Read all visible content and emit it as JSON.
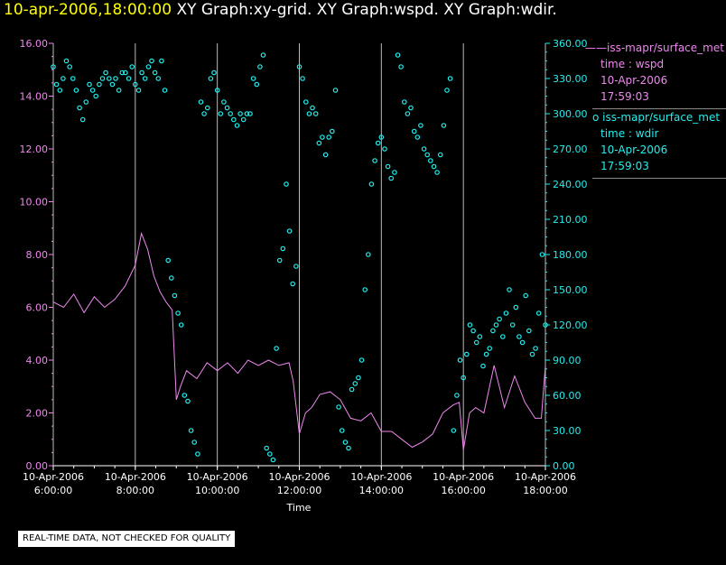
{
  "title": {
    "timestamp": "10-apr-2006,18:00:00",
    "graphs": "XY Graph:xy-grid.  XY Graph:wspd.  XY Graph:wdir."
  },
  "legend": {
    "series1": {
      "line1": "iss-mapr/surface_met",
      "line2": "time : wspd",
      "line3": "10-Apr-2006",
      "line4": "17:59:03",
      "color": "#ee88ee"
    },
    "series2": {
      "line1": "iss-mapr/surface_met",
      "line2": "time : wdir",
      "line3": "10-Apr-2006",
      "line4": "17:59:03",
      "color": "#22eeee"
    }
  },
  "footer": {
    "qc_notice": "REAL-TIME DATA, NOT CHECKED FOR QUALITY"
  },
  "chart_data": {
    "type": "line",
    "title": "XY Graph:wspd / XY Graph:wdir",
    "xlabel": "Time",
    "xlim": [
      6.0,
      18.0
    ],
    "x_ticks": [
      6,
      8,
      10,
      12,
      14,
      16,
      18
    ],
    "x_tick_labels": [
      [
        "10-Apr-2006",
        "6:00:00"
      ],
      [
        "10-Apr-2006",
        "8:00:00"
      ],
      [
        "10-Apr-2006",
        "10:00:00"
      ],
      [
        "10-Apr-2006",
        "12:00:00"
      ],
      [
        "10-Apr-2006",
        "14:00:00"
      ],
      [
        "10-Apr-2006",
        "16:00:00"
      ],
      [
        "10-Apr-2006",
        "18:00:00"
      ]
    ],
    "y_left": {
      "lim": [
        0,
        16
      ],
      "ticks": [
        "0.00",
        "2.00",
        "4.00",
        "6.00",
        "8.00",
        "10.00",
        "12.00",
        "14.00",
        "16.00"
      ],
      "color": "#ee88ee"
    },
    "y_right": {
      "lim": [
        0,
        360
      ],
      "ticks": [
        "0.00",
        "30.00",
        "60.00",
        "90.00",
        "120.00",
        "150.00",
        "180.00",
        "210.00",
        "240.00",
        "270.00",
        "300.00",
        "330.00",
        "360.00"
      ],
      "color": "#22eeee"
    },
    "grid": "vertical lines at each hour tick",
    "series": [
      {
        "name": "wspd",
        "style": "line",
        "axis": "left",
        "color": "#ee88ee",
        "x": [
          6.0,
          6.25,
          6.5,
          6.75,
          7.0,
          7.25,
          7.5,
          7.75,
          8.0,
          8.15,
          8.3,
          8.45,
          8.6,
          8.75,
          8.9,
          9.0,
          9.1,
          9.25,
          9.5,
          9.75,
          10.0,
          10.25,
          10.5,
          10.75,
          11.0,
          11.25,
          11.5,
          11.75,
          11.85,
          12.0,
          12.15,
          12.3,
          12.5,
          12.75,
          13.0,
          13.25,
          13.5,
          13.75,
          14.0,
          14.25,
          14.5,
          14.75,
          15.0,
          15.25,
          15.5,
          15.75,
          15.9,
          16.0,
          16.15,
          16.3,
          16.5,
          16.75,
          17.0,
          17.25,
          17.5,
          17.75,
          17.9,
          18.0
        ],
        "values": [
          6.2,
          6.0,
          6.5,
          5.8,
          6.4,
          6.0,
          6.3,
          6.8,
          7.6,
          8.8,
          8.2,
          7.2,
          6.6,
          6.2,
          5.9,
          2.5,
          3.0,
          3.6,
          3.3,
          3.9,
          3.6,
          3.9,
          3.5,
          4.0,
          3.8,
          4.0,
          3.8,
          3.9,
          3.2,
          1.2,
          2.0,
          2.2,
          2.7,
          2.8,
          2.5,
          1.8,
          1.7,
          2.0,
          1.3,
          1.3,
          1.0,
          0.7,
          0.9,
          1.2,
          2.0,
          2.3,
          2.4,
          0.6,
          2.0,
          2.2,
          2.0,
          3.8,
          2.2,
          3.4,
          2.4,
          1.8,
          1.8,
          3.8
        ]
      },
      {
        "name": "wdir",
        "style": "points",
        "axis": "right",
        "color": "#22eeee",
        "x": [
          6.0,
          6.08,
          6.16,
          6.24,
          6.32,
          6.4,
          6.48,
          6.56,
          6.64,
          6.72,
          6.8,
          6.88,
          6.96,
          7.04,
          7.12,
          7.2,
          7.28,
          7.36,
          7.44,
          7.52,
          7.6,
          7.68,
          7.76,
          7.84,
          7.92,
          8.0,
          8.08,
          8.16,
          8.24,
          8.32,
          8.4,
          8.48,
          8.56,
          8.64,
          8.72,
          8.8,
          8.88,
          8.96,
          9.04,
          9.12,
          9.2,
          9.28,
          9.36,
          9.44,
          9.52,
          9.6,
          9.68,
          9.76,
          9.84,
          9.92,
          10.0,
          10.08,
          10.16,
          10.24,
          10.32,
          10.4,
          10.48,
          10.56,
          10.64,
          10.72,
          10.8,
          10.88,
          10.96,
          11.04,
          11.12,
          11.2,
          11.28,
          11.36,
          11.44,
          11.52,
          11.6,
          11.68,
          11.76,
          11.84,
          11.92,
          12.0,
          12.08,
          12.16,
          12.24,
          12.32,
          12.4,
          12.48,
          12.56,
          12.64,
          12.72,
          12.8,
          12.88,
          12.96,
          13.04,
          13.12,
          13.2,
          13.28,
          13.36,
          13.44,
          13.52,
          13.6,
          13.68,
          13.76,
          13.84,
          13.92,
          14.0,
          14.08,
          14.16,
          14.24,
          14.32,
          14.4,
          14.48,
          14.56,
          14.64,
          14.72,
          14.8,
          14.88,
          14.96,
          15.04,
          15.12,
          15.2,
          15.28,
          15.36,
          15.44,
          15.52,
          15.6,
          15.68,
          15.76,
          15.84,
          15.92,
          16.0,
          16.08,
          16.16,
          16.24,
          16.32,
          16.4,
          16.48,
          16.56,
          16.64,
          16.72,
          16.8,
          16.88,
          16.96,
          17.04,
          17.12,
          17.2,
          17.28,
          17.36,
          17.44,
          17.52,
          17.6,
          17.68,
          17.76,
          17.84,
          17.92,
          18.0
        ],
        "values": [
          340,
          325,
          320,
          330,
          345,
          340,
          330,
          320,
          305,
          295,
          310,
          325,
          320,
          315,
          325,
          330,
          335,
          330,
          325,
          330,
          320,
          335,
          335,
          330,
          340,
          325,
          320,
          335,
          330,
          340,
          345,
          335,
          330,
          345,
          320,
          175,
          160,
          145,
          130,
          120,
          60,
          55,
          30,
          20,
          10,
          310,
          300,
          305,
          330,
          335,
          320,
          300,
          310,
          305,
          300,
          295,
          290,
          300,
          295,
          300,
          300,
          330,
          325,
          340,
          350,
          15,
          10,
          5,
          100,
          175,
          185,
          240,
          200,
          155,
          170,
          340,
          330,
          310,
          300,
          305,
          300,
          275,
          280,
          265,
          280,
          285,
          320,
          50,
          30,
          20,
          15,
          65,
          70,
          75,
          90,
          150,
          180,
          240,
          260,
          275,
          280,
          270,
          255,
          245,
          250,
          350,
          340,
          310,
          300,
          305,
          285,
          280,
          290,
          270,
          265,
          260,
          255,
          250,
          265,
          290,
          320,
          330,
          30,
          60,
          90,
          75,
          95,
          120,
          115,
          105,
          110,
          85,
          95,
          100,
          115,
          120,
          125,
          110,
          130,
          150,
          120,
          135,
          110,
          105,
          145,
          115,
          95,
          100,
          130,
          180,
          120
        ]
      }
    ]
  }
}
